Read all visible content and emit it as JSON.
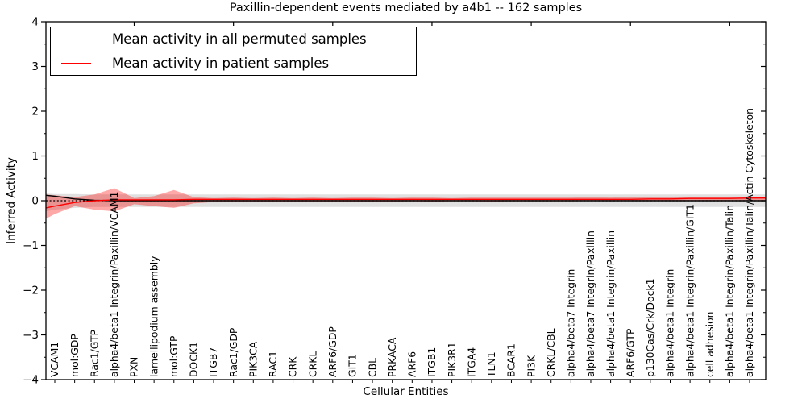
{
  "chart_data": {
    "type": "line",
    "title": "Paxillin-dependent events mediated by a4b1 -- 162 samples",
    "xlabel": "Cellular Entities",
    "ylabel": "Inferred Activity",
    "ylim": [
      -4,
      4
    ],
    "yticks": [
      4,
      3,
      2,
      1,
      0,
      -1,
      -2,
      -3,
      -4
    ],
    "grid": false,
    "legend_position": "upper left",
    "zero_line": {
      "y": 0,
      "style": "dotted",
      "color": "#000000"
    },
    "categories": [
      "VCAM1",
      "mol:GDP",
      "Rac1/GTP",
      "alpha4/beta1 Integrin/Paxillin/VCAM1",
      "PXN",
      "lamellipodium assembly",
      "mol:GTP",
      "DOCK1",
      "ITGB7",
      "Rac1/GDP",
      "PIK3CA",
      "RAC1",
      "CRK",
      "CRKL",
      "ARF6/GDP",
      "GIT1",
      "CBL",
      "PRKACA",
      "ARF6",
      "ITGB1",
      "PIK3R1",
      "ITGA4",
      "TLN1",
      "BCAR1",
      "PI3K",
      "CRKL/CBL",
      "alpha4/beta7 Integrin",
      "alpha4/beta7 Integrin/Paxillin",
      "alpha4/beta1 Integrin/Paxillin",
      "ARF6/GTP",
      "p130Cas/Crk/Dock1",
      "alpha4/beta1 Integrin",
      "alpha4/beta1 Integrin/Paxillin/GIT1",
      "cell adhesion",
      "alpha4/beta1 Integrin/Paxillin/Talin",
      "alpha4/beta1 Integrin/Paxillin/Talin/Actin Cytoskeleton"
    ],
    "series": [
      {
        "name": "Mean activity in all permuted samples",
        "color": "#000000",
        "edge_left": 0.12,
        "edge_right": 0.0,
        "values": [
          0.1,
          0.04,
          0.01,
          0.0,
          0.0,
          0.0,
          0.0,
          0.0,
          0.0,
          0.0,
          0.0,
          0.0,
          0.0,
          0.0,
          0.0,
          0.0,
          0.0,
          0.0,
          0.0,
          0.0,
          0.0,
          0.0,
          0.0,
          0.0,
          0.0,
          0.0,
          0.0,
          0.0,
          0.0,
          0.0,
          0.0,
          0.0,
          0.0,
          0.0,
          0.0,
          0.0
        ],
        "band": {
          "fill": "#999999",
          "fill_opacity": 0.3,
          "upper_edge_left": 0.16,
          "lower_edge_left": -0.24,
          "upper_edge_right": 0.14,
          "lower_edge_right": -0.14,
          "upper": [
            0.15,
            0.15,
            0.14,
            0.14,
            0.14,
            0.14,
            0.14,
            0.14,
            0.14,
            0.14,
            0.14,
            0.14,
            0.14,
            0.14,
            0.14,
            0.14,
            0.14,
            0.14,
            0.14,
            0.14,
            0.14,
            0.14,
            0.14,
            0.14,
            0.14,
            0.14,
            0.14,
            0.14,
            0.14,
            0.14,
            0.14,
            0.14,
            0.14,
            0.14,
            0.14,
            0.14
          ],
          "lower": [
            -0.2,
            -0.16,
            -0.14,
            -0.14,
            -0.14,
            -0.14,
            -0.14,
            -0.14,
            -0.14,
            -0.14,
            -0.14,
            -0.14,
            -0.14,
            -0.14,
            -0.14,
            -0.14,
            -0.14,
            -0.14,
            -0.14,
            -0.14,
            -0.14,
            -0.14,
            -0.14,
            -0.14,
            -0.14,
            -0.14,
            -0.14,
            -0.14,
            -0.14,
            -0.14,
            -0.14,
            -0.14,
            -0.14,
            -0.14,
            -0.14,
            -0.14
          ]
        }
      },
      {
        "name": "Mean activity in patient samples",
        "color": "#ff0000",
        "edge_left": -0.16,
        "edge_right": 0.06,
        "values": [
          -0.12,
          -0.04,
          0.0,
          0.02,
          0.02,
          0.02,
          0.02,
          0.03,
          0.03,
          0.03,
          0.03,
          0.03,
          0.03,
          0.03,
          0.03,
          0.03,
          0.03,
          0.03,
          0.03,
          0.03,
          0.03,
          0.03,
          0.03,
          0.03,
          0.03,
          0.03,
          0.03,
          0.03,
          0.03,
          0.03,
          0.04,
          0.04,
          0.05,
          0.05,
          0.05,
          0.06
        ],
        "band": {
          "fill": "#ff0000",
          "fill_opacity": 0.34,
          "upper_edge_left": 0.14,
          "lower_edge_left": -0.4,
          "upper_edge_right": 0.09,
          "lower_edge_right": 0.01,
          "upper": [
            0.12,
            0.08,
            0.14,
            0.28,
            0.06,
            0.1,
            0.24,
            0.08,
            0.06,
            0.07,
            0.06,
            0.07,
            0.06,
            0.07,
            0.06,
            0.07,
            0.07,
            0.06,
            0.07,
            0.07,
            0.06,
            0.07,
            0.07,
            0.07,
            0.07,
            0.07,
            0.07,
            0.08,
            0.07,
            0.08,
            0.08,
            0.08,
            0.09,
            0.08,
            0.09,
            0.09
          ],
          "lower": [
            -0.3,
            -0.12,
            -0.2,
            -0.24,
            -0.08,
            -0.12,
            -0.16,
            -0.06,
            -0.03,
            -0.02,
            -0.03,
            -0.02,
            -0.02,
            -0.03,
            -0.02,
            -0.02,
            -0.02,
            -0.02,
            -0.01,
            -0.02,
            -0.01,
            -0.01,
            -0.02,
            -0.01,
            -0.01,
            -0.01,
            -0.01,
            0.0,
            -0.01,
            0.0,
            0.0,
            0.0,
            0.01,
            0.0,
            0.01,
            0.01
          ]
        }
      }
    ],
    "top_tick_category_indices": [
      4,
      9,
      14,
      19,
      24,
      29,
      34
    ]
  },
  "legend": {
    "items": [
      {
        "label": "Mean activity in all permuted samples",
        "color": "#000000"
      },
      {
        "label": "Mean activity in patient samples",
        "color": "#ff0000"
      }
    ]
  }
}
